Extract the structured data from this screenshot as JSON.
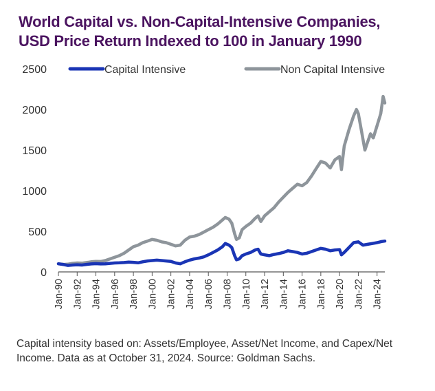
{
  "header": {
    "title_line1": "World Capital vs. Non-Capital-Intensive Companies,",
    "title_line2": "USD Price Return Indexed to 100 in January 1990"
  },
  "footnote": "Capital intensity based on: Assets/Employee, Asset/Net Income, and Capex/Net Income. Data as at October 31, 2024. Source: Goldman Sachs.",
  "colors": {
    "title": "#4b1460",
    "capital_intensive": "#1a35b5",
    "non_capital_intensive": "#8e959b",
    "axis": "#555555",
    "text": "#333333"
  },
  "chart_data": {
    "type": "line",
    "title": "World Capital vs. Non-Capital-Intensive Companies, USD Price Return Indexed to 100 in January 1990",
    "xlabel": "",
    "ylabel": "",
    "ylim": [
      0,
      2500
    ],
    "xlim": [
      1990,
      2024.83
    ],
    "yticks": [
      0,
      500,
      1000,
      1500,
      2000,
      2500
    ],
    "xtick_labels": [
      "Jan-90",
      "Jan-92",
      "Jan-94",
      "Jan-96",
      "Jan-98",
      "Jan-00",
      "Jan-02",
      "Jan-04",
      "Jan-06",
      "Jan-08",
      "Jan-10",
      "Jan-12",
      "Jan-14",
      "Jan-16",
      "Jan-18",
      "Jan-20",
      "Jan-22",
      "Jan-24"
    ],
    "xtick_values": [
      1990,
      1992,
      1994,
      1996,
      1998,
      2000,
      2002,
      2004,
      2006,
      2008,
      2010,
      2012,
      2014,
      2016,
      2018,
      2020,
      2022,
      2024
    ],
    "grid": false,
    "legend_position": "top",
    "series": [
      {
        "name": "Capital Intensive",
        "points": [
          [
            1990.0,
            100
          ],
          [
            1990.6,
            90
          ],
          [
            1991.0,
            80
          ],
          [
            1991.5,
            85
          ],
          [
            1992.0,
            88
          ],
          [
            1992.5,
            85
          ],
          [
            1993.0,
            92
          ],
          [
            1993.5,
            98
          ],
          [
            1994.0,
            102
          ],
          [
            1994.5,
            98
          ],
          [
            1995.0,
            100
          ],
          [
            1995.5,
            105
          ],
          [
            1996.0,
            110
          ],
          [
            1996.5,
            112
          ],
          [
            1997.0,
            115
          ],
          [
            1997.5,
            120
          ],
          [
            1998.0,
            118
          ],
          [
            1998.5,
            112
          ],
          [
            1999.0,
            125
          ],
          [
            1999.5,
            135
          ],
          [
            2000.0,
            140
          ],
          [
            2000.5,
            145
          ],
          [
            2001.0,
            140
          ],
          [
            2001.5,
            135
          ],
          [
            2002.0,
            130
          ],
          [
            2002.5,
            110
          ],
          [
            2003.0,
            100
          ],
          [
            2003.5,
            125
          ],
          [
            2004.0,
            145
          ],
          [
            2004.5,
            160
          ],
          [
            2005.0,
            170
          ],
          [
            2005.5,
            185
          ],
          [
            2006.0,
            210
          ],
          [
            2006.5,
            240
          ],
          [
            2007.0,
            270
          ],
          [
            2007.5,
            310
          ],
          [
            2007.8,
            350
          ],
          [
            2008.2,
            330
          ],
          [
            2008.5,
            300
          ],
          [
            2008.8,
            200
          ],
          [
            2009.0,
            150
          ],
          [
            2009.3,
            160
          ],
          [
            2009.6,
            200
          ],
          [
            2010.0,
            220
          ],
          [
            2010.5,
            240
          ],
          [
            2011.0,
            270
          ],
          [
            2011.3,
            280
          ],
          [
            2011.6,
            220
          ],
          [
            2012.0,
            210
          ],
          [
            2012.5,
            200
          ],
          [
            2013.0,
            215
          ],
          [
            2013.5,
            225
          ],
          [
            2014.0,
            240
          ],
          [
            2014.5,
            260
          ],
          [
            2015.0,
            250
          ],
          [
            2015.5,
            240
          ],
          [
            2016.0,
            220
          ],
          [
            2016.5,
            230
          ],
          [
            2017.0,
            250
          ],
          [
            2017.5,
            270
          ],
          [
            2018.0,
            290
          ],
          [
            2018.5,
            280
          ],
          [
            2019.0,
            260
          ],
          [
            2019.5,
            270
          ],
          [
            2020.0,
            275
          ],
          [
            2020.2,
            210
          ],
          [
            2020.5,
            240
          ],
          [
            2021.0,
            300
          ],
          [
            2021.5,
            360
          ],
          [
            2022.0,
            370
          ],
          [
            2022.5,
            330
          ],
          [
            2023.0,
            340
          ],
          [
            2023.5,
            350
          ],
          [
            2024.0,
            360
          ],
          [
            2024.5,
            375
          ],
          [
            2024.83,
            380
          ]
        ]
      },
      {
        "name": "Non Capital Intensive",
        "points": [
          [
            1990.0,
            100
          ],
          [
            1990.6,
            92
          ],
          [
            1991.0,
            95
          ],
          [
            1991.5,
            105
          ],
          [
            1992.0,
            110
          ],
          [
            1992.5,
            108
          ],
          [
            1993.0,
            115
          ],
          [
            1993.5,
            125
          ],
          [
            1994.0,
            130
          ],
          [
            1994.5,
            128
          ],
          [
            1995.0,
            140
          ],
          [
            1995.5,
            160
          ],
          [
            1996.0,
            180
          ],
          [
            1996.5,
            200
          ],
          [
            1997.0,
            230
          ],
          [
            1997.5,
            270
          ],
          [
            1998.0,
            310
          ],
          [
            1998.5,
            330
          ],
          [
            1999.0,
            360
          ],
          [
            1999.5,
            380
          ],
          [
            2000.0,
            400
          ],
          [
            2000.5,
            390
          ],
          [
            2001.0,
            370
          ],
          [
            2001.5,
            360
          ],
          [
            2002.0,
            340
          ],
          [
            2002.5,
            320
          ],
          [
            2003.0,
            330
          ],
          [
            2003.5,
            390
          ],
          [
            2004.0,
            430
          ],
          [
            2004.5,
            440
          ],
          [
            2005.0,
            460
          ],
          [
            2005.5,
            490
          ],
          [
            2006.0,
            520
          ],
          [
            2006.5,
            550
          ],
          [
            2007.0,
            590
          ],
          [
            2007.5,
            640
          ],
          [
            2007.8,
            670
          ],
          [
            2008.2,
            650
          ],
          [
            2008.5,
            600
          ],
          [
            2008.8,
            470
          ],
          [
            2009.0,
            400
          ],
          [
            2009.3,
            420
          ],
          [
            2009.6,
            520
          ],
          [
            2010.0,
            560
          ],
          [
            2010.5,
            600
          ],
          [
            2011.0,
            660
          ],
          [
            2011.3,
            690
          ],
          [
            2011.6,
            620
          ],
          [
            2012.0,
            690
          ],
          [
            2012.5,
            740
          ],
          [
            2013.0,
            790
          ],
          [
            2013.5,
            860
          ],
          [
            2014.0,
            920
          ],
          [
            2014.5,
            980
          ],
          [
            2015.0,
            1030
          ],
          [
            2015.5,
            1080
          ],
          [
            2016.0,
            1060
          ],
          [
            2016.5,
            1100
          ],
          [
            2017.0,
            1180
          ],
          [
            2017.5,
            1270
          ],
          [
            2018.0,
            1360
          ],
          [
            2018.5,
            1340
          ],
          [
            2019.0,
            1280
          ],
          [
            2019.5,
            1380
          ],
          [
            2020.0,
            1420
          ],
          [
            2020.2,
            1260
          ],
          [
            2020.5,
            1550
          ],
          [
            2021.0,
            1750
          ],
          [
            2021.5,
            1920
          ],
          [
            2021.8,
            2000
          ],
          [
            2022.0,
            1950
          ],
          [
            2022.3,
            1760
          ],
          [
            2022.7,
            1500
          ],
          [
            2023.0,
            1600
          ],
          [
            2023.3,
            1700
          ],
          [
            2023.6,
            1650
          ],
          [
            2024.0,
            1800
          ],
          [
            2024.4,
            1950
          ],
          [
            2024.65,
            2160
          ],
          [
            2024.83,
            2080
          ]
        ]
      }
    ]
  }
}
